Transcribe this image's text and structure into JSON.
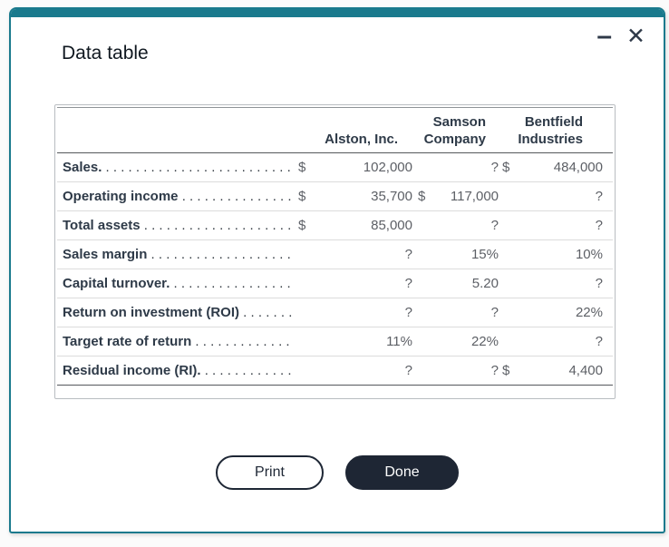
{
  "window": {
    "title": "Data table",
    "minimize_glyph": "–",
    "close_glyph": "✕"
  },
  "colors": {
    "titlebar_teal": "#1A7A8D",
    "done_button_bg": "#1E2634",
    "label_text": "#2E3A48",
    "value_text": "#5D6066"
  },
  "table": {
    "leader_dots": " . . . . . . . . . . . . . . . . . . . . . . . . . . . . . . . . . . . . . . . . . . . . . . . . . .",
    "header": {
      "alston": "Alston, Inc.",
      "samson": [
        "Samson",
        "Company"
      ],
      "bentfield": [
        "Bentfield",
        "Industries"
      ]
    },
    "rows": [
      {
        "label": "Sales.",
        "cur1": "$",
        "alston": "102,000",
        "cur2": "",
        "samson": "?",
        "cur3": "$",
        "bentfield": "484,000"
      },
      {
        "label": "Operating income",
        "cur1": "$",
        "alston": "35,700",
        "cur2": "$",
        "samson": "117,000",
        "cur3": "",
        "bentfield": "?"
      },
      {
        "label": "Total assets",
        "cur1": "$",
        "alston": "85,000",
        "cur2": "",
        "samson": "?",
        "cur3": "",
        "bentfield": "?"
      },
      {
        "label": "Sales margin",
        "cur1": "",
        "alston": "?",
        "cur2": "",
        "samson": "15%",
        "cur3": "",
        "bentfield": "10%"
      },
      {
        "label": "Capital turnover.",
        "cur1": "",
        "alston": "?",
        "cur2": "",
        "samson": "5.20",
        "cur3": "",
        "bentfield": "?"
      },
      {
        "label": "Return on investment (ROI)",
        "cur1": "",
        "alston": "?",
        "cur2": "",
        "samson": "?",
        "cur3": "",
        "bentfield": "22%"
      },
      {
        "label": "Target rate of return",
        "cur1": "",
        "alston": "11%",
        "cur2": "",
        "samson": "22%",
        "cur3": "",
        "bentfield": "?"
      },
      {
        "label": "Residual income (RI).",
        "cur1": "",
        "alston": "?",
        "cur2": "",
        "samson": "?",
        "cur3": "$",
        "bentfield": "4,400"
      }
    ]
  },
  "buttons": {
    "print": "Print",
    "done": "Done"
  }
}
